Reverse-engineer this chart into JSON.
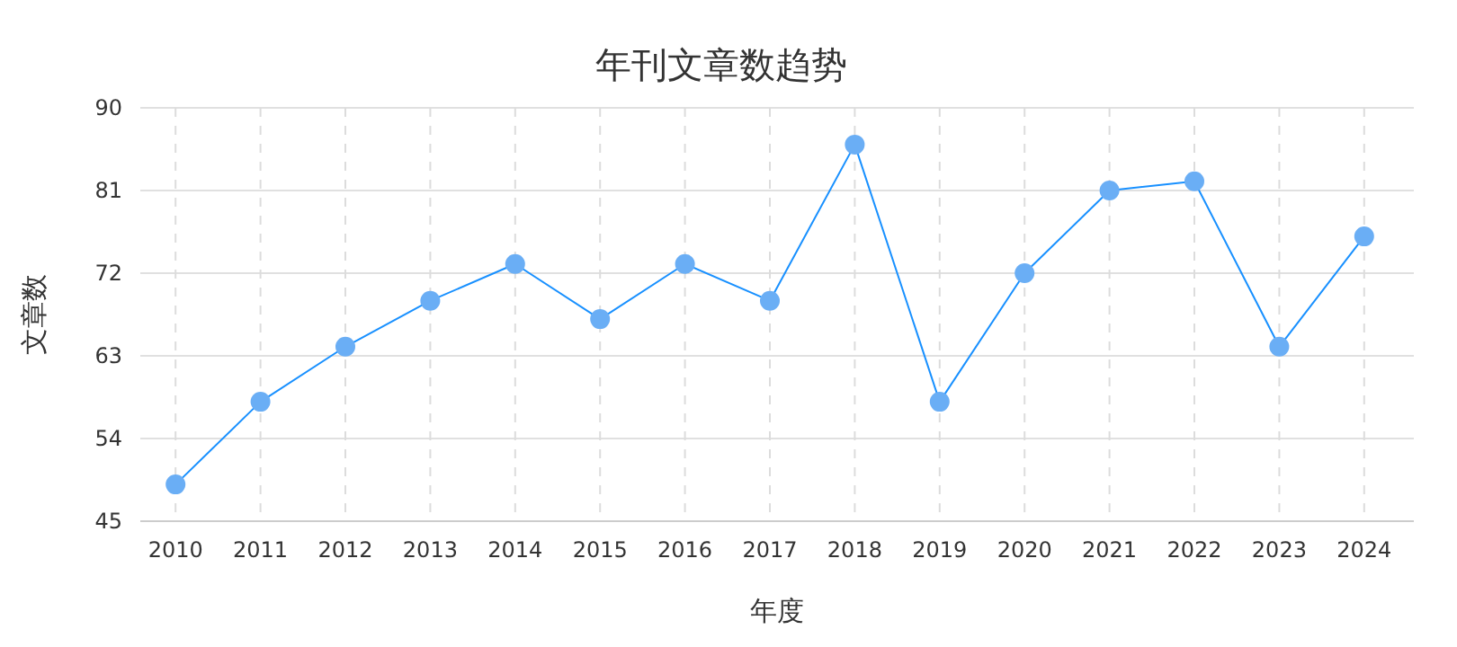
{
  "chart_data": {
    "type": "line",
    "title": "年刊文章数趋势",
    "xlabel": "年度",
    "ylabel": "文章数",
    "categories": [
      "2010",
      "2011",
      "2012",
      "2013",
      "2014",
      "2015",
      "2016",
      "2017",
      "2018",
      "2019",
      "2020",
      "2021",
      "2022",
      "2023",
      "2024"
    ],
    "series": [
      {
        "color": "#1890ff",
        "values": [
          49,
          58,
          64,
          69,
          73,
          67,
          73,
          69,
          86,
          58,
          72,
          81,
          82,
          64,
          76
        ]
      }
    ],
    "ylim": [
      45,
      90
    ],
    "yticks": [
      45,
      54,
      63,
      72,
      81,
      90
    ],
    "grid": true,
    "marker": "circle",
    "line_style": "solid"
  }
}
